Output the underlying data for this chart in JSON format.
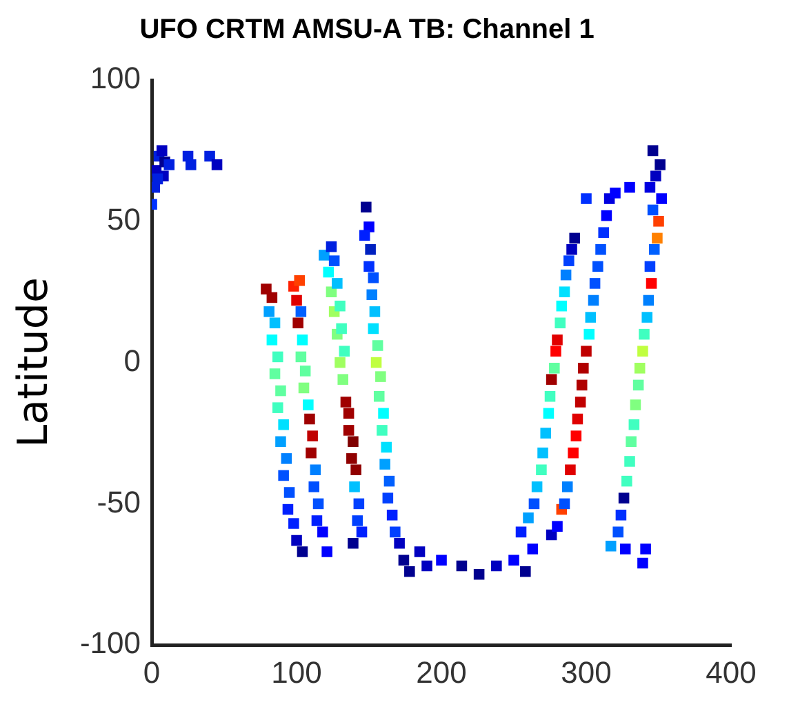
{
  "chart_data": {
    "type": "scatter",
    "title": "UFO CRTM AMSU-A TB: Channel 1",
    "ylabel": "Latitude",
    "xlim": [
      0,
      400
    ],
    "xticks": [
      0,
      100,
      200,
      300,
      400
    ],
    "ylim": [
      -100,
      100
    ],
    "yticks": [
      -100,
      -50,
      0,
      50,
      100
    ],
    "marker": "square",
    "series": [
      {
        "x": [
          0,
          2,
          3,
          5,
          7,
          9,
          12,
          8,
          4,
          25,
          27,
          40,
          45,
          79,
          83,
          81,
          85,
          83,
          87,
          85,
          89,
          87,
          91,
          89,
          93,
          91,
          95,
          94,
          98,
          100,
          104,
          98,
          102,
          100,
          103,
          101,
          104,
          103,
          106,
          105,
          108,
          109,
          111,
          110,
          113,
          112,
          115,
          114,
          118,
          121,
          119,
          124,
          122,
          126,
          124,
          128,
          126,
          130,
          128,
          131,
          130,
          133,
          132,
          134,
          136,
          136,
          139,
          138,
          141,
          140,
          143,
          142,
          145,
          139,
          148,
          150,
          147,
          151,
          150,
          153,
          152,
          154,
          153,
          156,
          155,
          158,
          157,
          160,
          159,
          162,
          161,
          164,
          163,
          166,
          168,
          171,
          174,
          178,
          185,
          190,
          200,
          214,
          226,
          238,
          250,
          258,
          263,
          255,
          260,
          264,
          266,
          269,
          270,
          272,
          274,
          275,
          276,
          278,
          279,
          280,
          282,
          283,
          285,
          286,
          288,
          290,
          292,
          276,
          280,
          283,
          285,
          287,
          289,
          291,
          293,
          294,
          296,
          297,
          298,
          300,
          302,
          303,
          305,
          306,
          308,
          310,
          312,
          314,
          316,
          300,
          317,
          322,
          324,
          326,
          328,
          330,
          331,
          333,
          334,
          336,
          337,
          339,
          340,
          342,
          343,
          345,
          344,
          347,
          349,
          350,
          346,
          352,
          344,
          348,
          351,
          346,
          330,
          320,
          327,
          341,
          339
        ],
        "values": [
          56,
          62,
          68,
          73,
          75,
          71,
          70,
          66,
          65,
          73,
          70,
          73,
          70,
          26,
          23,
          18,
          14,
          8,
          2,
          -4,
          -10,
          -16,
          -22,
          -28,
          -34,
          -40,
          -46,
          -52,
          -57,
          -63,
          -67,
          27,
          29,
          22,
          18,
          14,
          8,
          2,
          -3,
          -9,
          -15,
          -20,
          -26,
          -32,
          -38,
          -44,
          -50,
          -56,
          -60,
          -67,
          38,
          41,
          32,
          36,
          25,
          28,
          18,
          20,
          10,
          12,
          0,
          4,
          -6,
          -14,
          -18,
          -24,
          -28,
          -34,
          -38,
          -44,
          -50,
          -56,
          -60,
          -64,
          55,
          48,
          45,
          40,
          34,
          30,
          24,
          18,
          12,
          6,
          0,
          -5,
          -12,
          -18,
          -24,
          -30,
          -36,
          -42,
          -48,
          -54,
          -60,
          -64,
          -70,
          -74,
          -67,
          -72,
          -70,
          -72,
          -75,
          -72,
          -70,
          -74,
          -66,
          -60,
          -55,
          -50,
          -44,
          -38,
          -32,
          -25,
          -18,
          -12,
          -6,
          -2,
          4,
          8,
          14,
          20,
          25,
          31,
          36,
          40,
          44,
          -61,
          -58,
          -52,
          -50,
          -44,
          -38,
          -32,
          -26,
          -20,
          -14,
          -8,
          -2,
          4,
          10,
          16,
          22,
          28,
          34,
          40,
          46,
          52,
          58,
          58,
          -65,
          -60,
          -54,
          -48,
          -42,
          -35,
          -28,
          -22,
          -15,
          -8,
          -2,
          4,
          10,
          16,
          22,
          28,
          34,
          40,
          44,
          50,
          54,
          58,
          62,
          66,
          70,
          75,
          62,
          60,
          -66,
          -66,
          -71
        ],
        "colors": [
          "#0030ff",
          "#0020e0",
          "#0000c0",
          "#0020e0",
          "#0000c0",
          "#00008f",
          "#0020e0",
          "#0000c0",
          "#0020e0",
          "#0020e0",
          "#0020e0",
          "#0020e0",
          "#0000c0",
          "#a00000",
          "#a00000",
          "#00a0ff",
          "#00c0ff",
          "#00ffff",
          "#40ffc0",
          "#60ffa0",
          "#60ffa0",
          "#40ffc0",
          "#00e0ff",
          "#00a0ff",
          "#0080ff",
          "#0050ff",
          "#0050ff",
          "#0020ff",
          "#0020ff",
          "#0000c0",
          "#00008f",
          "#ff2000",
          "#ff4000",
          "#e00000",
          "#0060ff",
          "#a00000",
          "#00ffff",
          "#60ffa0",
          "#60ffa0",
          "#80ff80",
          "#00ffff",
          "#a00000",
          "#c00000",
          "#a00000",
          "#0080ff",
          "#0050ff",
          "#0050ff",
          "#0020ff",
          "#0000ff",
          "#0000ff",
          "#00a0ff",
          "#0020e0",
          "#00ffff",
          "#0050ff",
          "#80ff80",
          "#00c0ff",
          "#a0ff60",
          "#40ffc0",
          "#80ff80",
          "#40ffc0",
          "#a0ff60",
          "#40ffc0",
          "#80ff80",
          "#a00000",
          "#a00000",
          "#a00000",
          "#800000",
          "#900000",
          "#900000",
          "#00c0ff",
          "#0040ff",
          "#0040ff",
          "#0020ff",
          "#00008f",
          "#00008f",
          "#0000ff",
          "#0020ff",
          "#0020c0",
          "#0030ff",
          "#0050ff",
          "#0080ff",
          "#00c0ff",
          "#00e0ff",
          "#60ffa0",
          "#c0ff40",
          "#80ff80",
          "#60ffa0",
          "#00ffff",
          "#40ffc0",
          "#00e0ff",
          "#00a0ff",
          "#0060ff",
          "#0040ff",
          "#0020ff",
          "#0040ff",
          "#0000c0",
          "#00008f",
          "#00008f",
          "#0000c0",
          "#0000c0",
          "#0000ff",
          "#00008f",
          "#00008f",
          "#0000c0",
          "#0000ff",
          "#00008f",
          "#0000ff",
          "#0020ff",
          "#00a0ff",
          "#0050ff",
          "#00c0ff",
          "#40ffc0",
          "#00c0ff",
          "#00c0ff",
          "#00ffff",
          "#40ffc0",
          "#a00000",
          "#60ffa0",
          "#ff0000",
          "#e00000",
          "#40ffc0",
          "#00ffff",
          "#00e0ff",
          "#0080ff",
          "#0040ff",
          "#0000c0",
          "#00008f",
          "#0000c0",
          "#0000ff",
          "#ff4000",
          "#0050ff",
          "#0080ff",
          "#e00000",
          "#ff0000",
          "#ff0000",
          "#e00000",
          "#c00000",
          "#b00000",
          "#b00000",
          "#c00000",
          "#00ffff",
          "#00c0ff",
          "#0080ff",
          "#0050ff",
          "#0050ff",
          "#0050ff",
          "#0030ff",
          "#0000ff",
          "#0000e0",
          "#0030ff",
          "#00a0ff",
          "#0050ff",
          "#0030ff",
          "#00008f",
          "#40ffc0",
          "#40ffc0",
          "#60ffa0",
          "#40ffc0",
          "#80ff80",
          "#60ffa0",
          "#a0ff60",
          "#c0ff40",
          "#40ffc0",
          "#00c0ff",
          "#0080ff",
          "#ff0000",
          "#0040ff",
          "#0060ff",
          "#ff8000",
          "#ff4000",
          "#0050ff",
          "#0000ff",
          "#0000e0",
          "#0000c0",
          "#00008f",
          "#00008f",
          "#0000ff",
          "#0000ff",
          "#0000ff",
          "#0000ff",
          "#0000ff"
        ]
      }
    ]
  }
}
